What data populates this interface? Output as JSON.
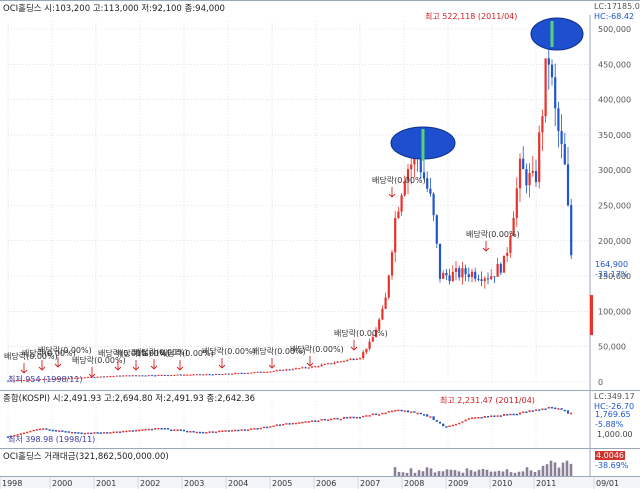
{
  "main": {
    "header": "OCI홀딩스 시:103,200 고:113,000 저:92,100 종:94,000",
    "lc": "LC:17185.0",
    "hc": "HC:-68.42",
    "high_note": "최고 522,118 (2011/04)",
    "low_note": "최저 954 (1998/11)",
    "last_price": "164,900",
    "last_change": "-33.17%",
    "y_ticks": [
      "500,000",
      "450,000",
      "400,000",
      "350,000",
      "300,000",
      "250,000",
      "200,000",
      "150,000",
      "100,000",
      "50,000",
      "0"
    ],
    "dividend_labels": [
      "배당락(0.00%)",
      "배당락(0.00%)",
      "배당락(0.00%)",
      "배당락(0.00%)",
      "배당락(0.00%)",
      "배당락(0.00%)",
      "배당락(0.00%)",
      "배당락(0.00%)",
      "배당락(0.00%)",
      "배당락(0.00%)",
      "배당락(0.00%)",
      "배당락(0.00%)",
      "배당락(0.00%)"
    ],
    "colors": {
      "up": "#e8322c",
      "down": "#1f56c8",
      "highlight": "#1e4fcf"
    }
  },
  "kospi": {
    "header": "종합(KOSPI) 시:2,491.93 고:2,694.80 저:2,491.93 종:2,642.36",
    "lc": "LC:349.17",
    "hc": "HC:-26.70",
    "high_note": "최고 2,231.47 (2011/04)",
    "low_note": "최저 398.98 (1998/11)",
    "last": "1,769.65",
    "change": "-5.88%",
    "y_ticks": [
      "1,000.00"
    ]
  },
  "volume": {
    "header": "OCI홀딩스 거래대금(321,862,500,000.00)",
    "last": "4.0046",
    "change": "-38.69%"
  },
  "x_axis": {
    "labels": [
      "1998",
      "2000",
      "2001",
      "2002",
      "2003",
      "2004",
      "2005",
      "2006",
      "2007",
      "2008",
      "2009",
      "2010",
      "2011",
      "09/01"
    ]
  },
  "chart_data": {
    "type": "candlestick",
    "title": "OCI홀딩스",
    "x": [
      "1998",
      "1999",
      "2000",
      "2001",
      "2002",
      "2003",
      "2004",
      "2005",
      "2006",
      "2007",
      "2007-06",
      "2008",
      "2008-06",
      "2009",
      "2009-06",
      "2010",
      "2010-06",
      "2011-04",
      "2011-08"
    ],
    "close": [
      2000,
      5000,
      8000,
      10000,
      11000,
      10000,
      14000,
      18000,
      25000,
      38000,
      90000,
      300000,
      230000,
      150000,
      160000,
      170000,
      300000,
      500000,
      164900
    ],
    "ylim": [
      0,
      520000
    ],
    "max_label": {
      "value": 522118,
      "date": "2011/04"
    },
    "min_label": {
      "value": 954,
      "date": "1998/11"
    }
  }
}
